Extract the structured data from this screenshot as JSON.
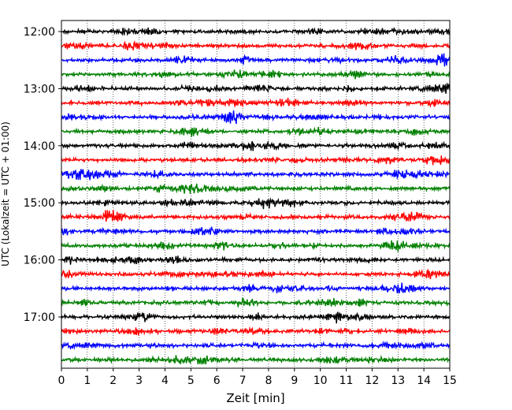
{
  "chart_data": {
    "type": "line",
    "title": "",
    "xlabel": "Zeit  [min]",
    "ylabel": "UTC (Lokalzeit = UTC + 01:00)",
    "xlim": [
      0,
      15
    ],
    "x_ticks": [
      "0",
      "1",
      "2",
      "3",
      "4",
      "5",
      "6",
      "7",
      "8",
      "9",
      "10",
      "11",
      "12",
      "13",
      "14",
      "15"
    ],
    "y_ticks": [
      "12:00",
      "13:00",
      "14:00",
      "15:00",
      "16:00",
      "17:00"
    ],
    "grid": "vertical dotted lines at each minute",
    "trace_interval_minutes": 15,
    "trace_colors": [
      "#000000",
      "#ff0000",
      "#0000ff",
      "#008000"
    ],
    "trace_start_times": [
      "12:00",
      "12:15",
      "12:30",
      "12:45",
      "13:00",
      "13:15",
      "13:30",
      "13:45",
      "14:00",
      "14:15",
      "14:30",
      "14:45",
      "15:00",
      "15:15",
      "15:30",
      "15:45",
      "16:00",
      "16:15",
      "16:30",
      "16:45",
      "17:00",
      "17:15",
      "17:30",
      "17:45"
    ]
  }
}
